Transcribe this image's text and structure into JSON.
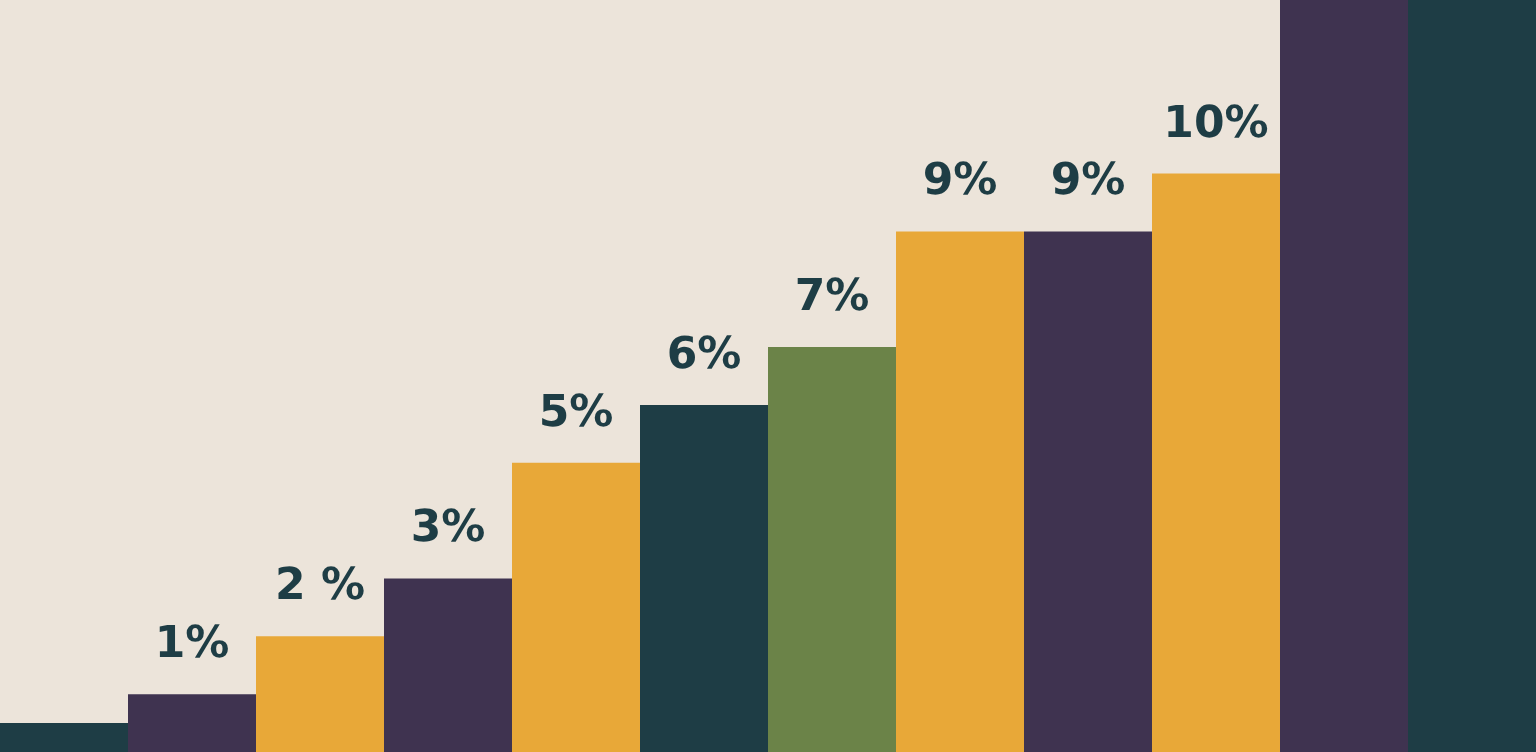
{
  "chart_data": {
    "type": "bar",
    "categories": [
      null,
      null,
      null,
      null,
      null,
      null,
      null,
      null,
      null,
      null,
      null,
      null
    ],
    "values": [
      0.5,
      1,
      2,
      3,
      5,
      6,
      7,
      9,
      9,
      10,
      13,
      13
    ],
    "colors": [
      "#1e3d45",
      "#3f3350",
      "#e8a838",
      "#3f3350",
      "#e8a838",
      "#1e3d45",
      "#6b8348",
      "#e8a838",
      "#3f3350",
      "#e8a838",
      "#3f3350",
      "#1e3d45"
    ],
    "value_labels": [
      null,
      "1%",
      "2 %",
      "3%",
      "5%",
      "6%",
      "7%",
      "9%",
      "9%",
      "10%",
      null,
      null
    ]
  }
}
